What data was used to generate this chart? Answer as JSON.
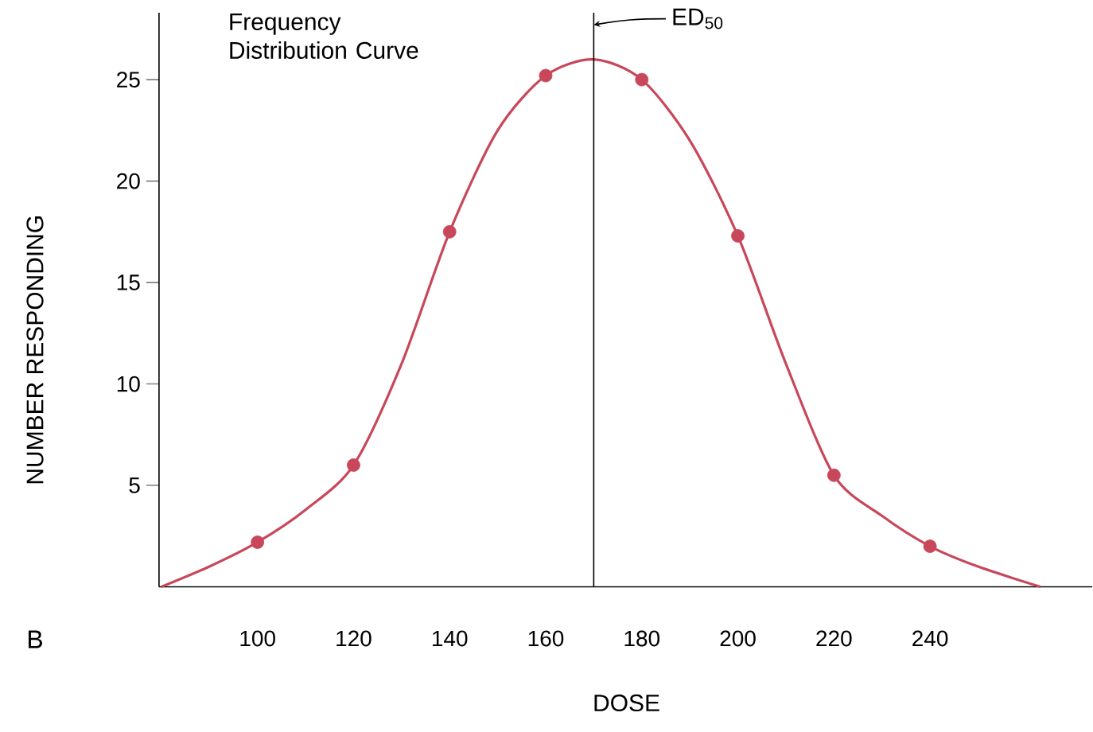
{
  "chart_data": {
    "type": "line",
    "xlabel": "DOSE",
    "ylabel": "NUMBER RESPONDING",
    "xlim": [
      79.5,
      273.8
    ],
    "ylim": [
      0,
      28.3
    ],
    "xticks": [
      100,
      120,
      140,
      160,
      180,
      200,
      220,
      240
    ],
    "yticks": [
      5,
      10,
      15,
      20,
      25
    ],
    "grid": false,
    "series": [
      {
        "color": "#c8475a",
        "marker": "none",
        "x": [
          80,
          90,
          100,
          110,
          120,
          130,
          140,
          150,
          160,
          170,
          180,
          190,
          200,
          210,
          220,
          230,
          240,
          250,
          263
        ],
        "values": [
          0,
          1,
          2.2,
          3.8,
          6,
          11,
          17.5,
          22.5,
          25.2,
          26,
          25,
          22,
          17.3,
          11,
          5.5,
          3.5,
          2,
          1,
          0
        ]
      },
      {
        "type": "scatter",
        "color": "#c8475a",
        "marker": "circle",
        "x": [
          100,
          120,
          140,
          160,
          180,
          200,
          220,
          240
        ],
        "values": [
          2.2,
          6,
          17.5,
          25.2,
          25,
          17.3,
          5.5,
          2
        ]
      }
    ],
    "ref_lines": [
      {
        "axis": "x",
        "value": 170,
        "label": "ED$_{50}$",
        "color": "#000000"
      }
    ],
    "annotations": [
      "Frequency Distribution Curve",
      "B"
    ]
  }
}
